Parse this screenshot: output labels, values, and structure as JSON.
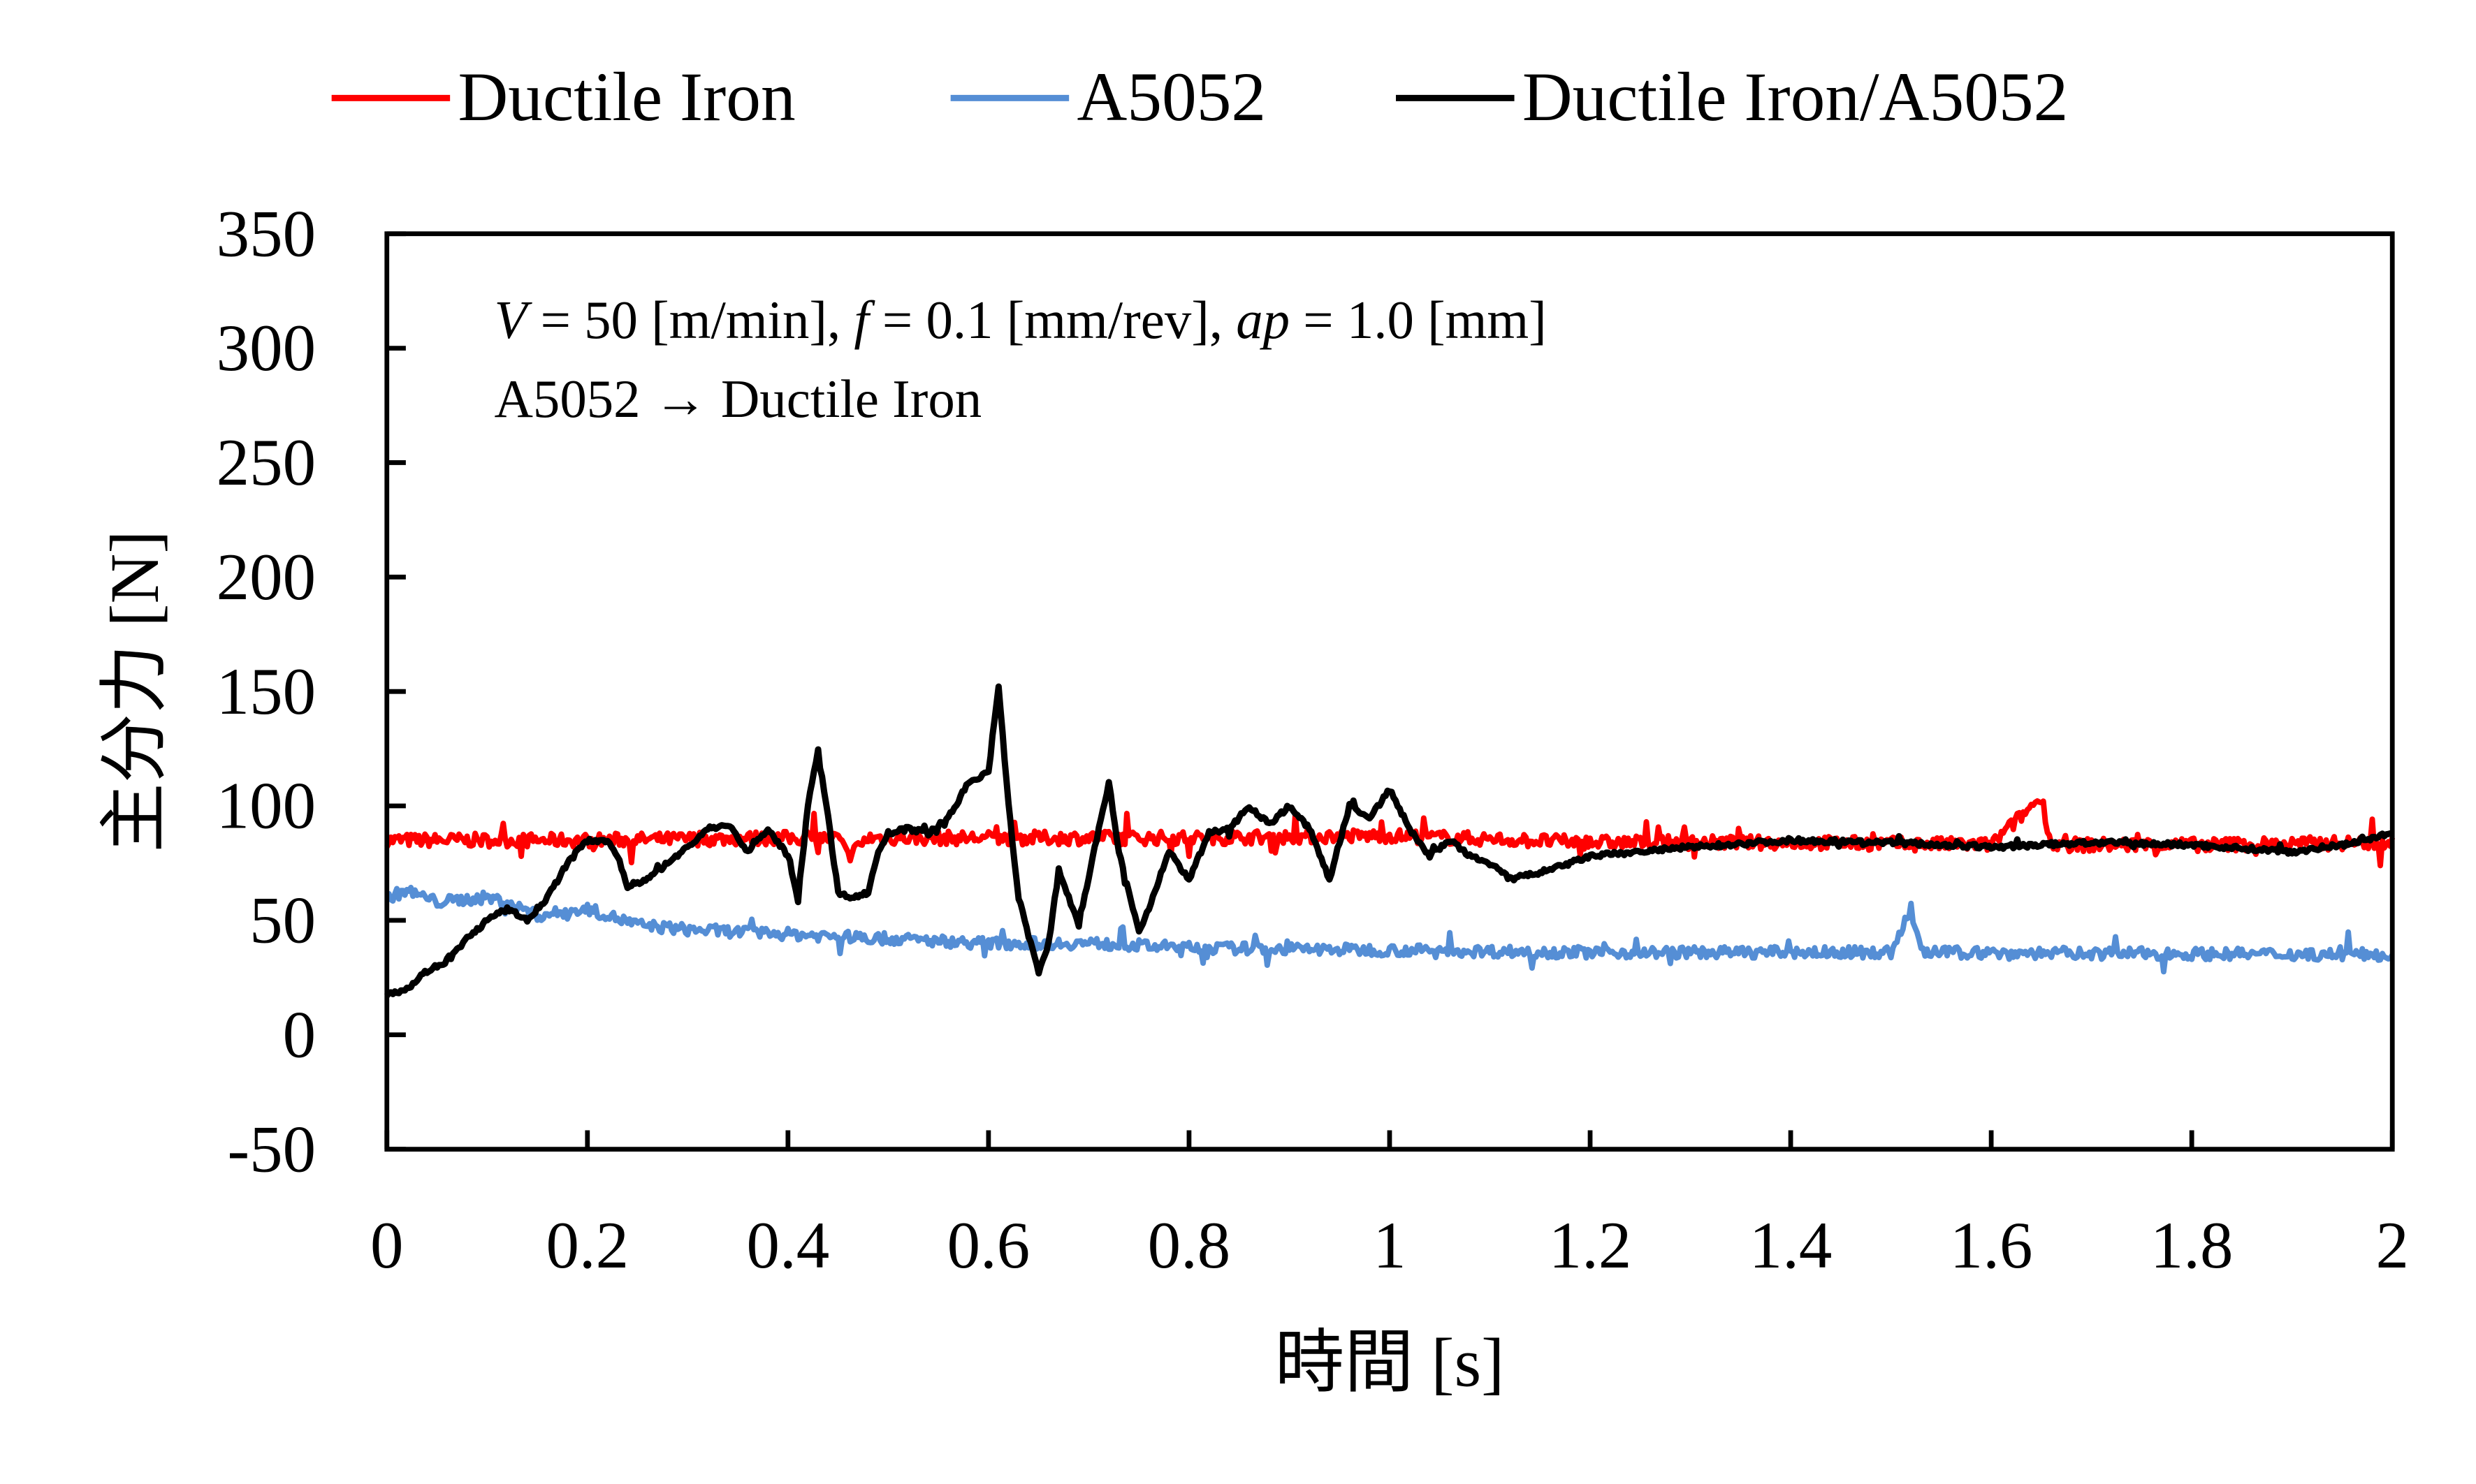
{
  "chart_data": {
    "type": "line",
    "title": "",
    "xlabel": "時間 [s]",
    "ylabel": "主分力 [N]",
    "xlim": [
      0,
      2
    ],
    "ylim": [
      -50,
      350
    ],
    "xticks": [
      "0",
      "0.2",
      "0.4",
      "0.6",
      "0.8",
      "1",
      "1.2",
      "1.4",
      "1.6",
      "1.8",
      "2"
    ],
    "yticks": [
      "-50",
      "0",
      "50",
      "100",
      "150",
      "200",
      "250",
      "300",
      "350"
    ],
    "grid": false,
    "legend_position": "top",
    "annotations": {
      "conditions": {
        "V_sym": "V",
        "V_val": " = 50 [m/min], ",
        "f_sym": "f",
        "f_val": " = 0.1 [mm/rev], ",
        "ap_sym": "ap",
        "ap_val": " = 1.0 [mm]"
      },
      "direction": "A5052 → Ductile Iron"
    },
    "series": [
      {
        "name": "Ductile Iron",
        "color": "#ff0000",
        "noise": 6,
        "x": [
          0,
          0.2,
          0.4,
          0.45,
          0.46,
          0.48,
          0.6,
          0.8,
          1.0,
          1.2,
          1.4,
          1.6,
          1.65,
          1.66,
          1.8,
          2.0
        ],
        "y": [
          85,
          85,
          86,
          86,
          78,
          86,
          86,
          86,
          87,
          84,
          84,
          83,
          104,
          83,
          83,
          84
        ]
      },
      {
        "name": "A5052",
        "color": "#558ed5",
        "noise": 5,
        "x": [
          0,
          0.02,
          0.05,
          0.1,
          0.12,
          0.15,
          0.2,
          0.25,
          0.3,
          0.4,
          0.5,
          0.6,
          0.7,
          0.8,
          1.0,
          1.2,
          1.5,
          1.52,
          1.53,
          2.0
        ],
        "y": [
          60,
          63,
          58,
          60,
          58,
          52,
          55,
          48,
          46,
          44,
          42,
          40,
          40,
          38,
          37,
          36,
          36,
          55,
          36,
          35
        ]
      },
      {
        "name": "Ductile Iron/A5052",
        "color": "#000000",
        "noise": 2,
        "x": [
          0,
          0.02,
          0.04,
          0.06,
          0.08,
          0.1,
          0.12,
          0.14,
          0.16,
          0.18,
          0.2,
          0.22,
          0.23,
          0.24,
          0.26,
          0.28,
          0.3,
          0.32,
          0.34,
          0.36,
          0.38,
          0.4,
          0.41,
          0.42,
          0.43,
          0.44,
          0.45,
          0.46,
          0.48,
          0.49,
          0.5,
          0.52,
          0.54,
          0.56,
          0.58,
          0.6,
          0.61,
          0.62,
          0.63,
          0.65,
          0.66,
          0.67,
          0.69,
          0.71,
          0.72,
          0.73,
          0.75,
          0.76,
          0.78,
          0.8,
          0.82,
          0.84,
          0.86,
          0.88,
          0.9,
          0.92,
          0.94,
          0.96,
          0.98,
          1.0,
          1.02,
          1.04,
          1.06,
          1.08,
          1.1,
          1.12,
          1.14,
          1.16,
          1.18,
          1.2,
          1.25,
          1.3,
          1.4,
          1.5,
          1.6,
          1.7,
          1.8,
          1.9,
          1.95,
          2.0
        ],
        "y": [
          18,
          20,
          28,
          32,
          42,
          50,
          55,
          50,
          60,
          75,
          85,
          85,
          78,
          65,
          68,
          75,
          82,
          90,
          92,
          80,
          90,
          78,
          60,
          100,
          125,
          95,
          62,
          60,
          62,
          80,
          88,
          90,
          88,
          95,
          110,
          115,
          152,
          100,
          60,
          27,
          40,
          72,
          48,
          90,
          110,
          80,
          45,
          55,
          80,
          68,
          88,
          90,
          100,
          92,
          100,
          90,
          68,
          100,
          95,
          107,
          90,
          78,
          85,
          78,
          75,
          68,
          70,
          72,
          75,
          78,
          80,
          82,
          85,
          84,
          82,
          84,
          83,
          80,
          83,
          88
        ]
      }
    ]
  }
}
